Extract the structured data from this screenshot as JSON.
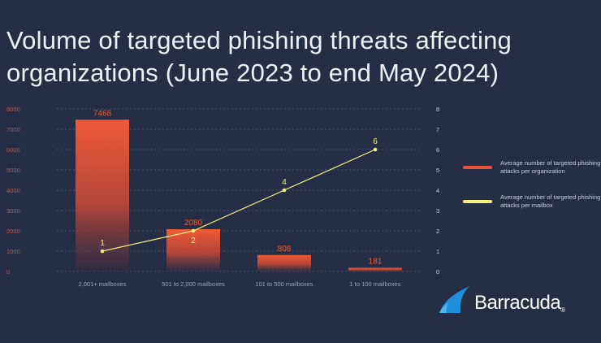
{
  "title": "Volume of targeted phishing threats affecting organizations (June 2023 to end May 2024)",
  "colors": {
    "background": "#252e45",
    "bar_top": "#ef5a36",
    "line": "#f6ed82",
    "axis_text": "#c05a45"
  },
  "legend": [
    {
      "label": "Average number of targeted phishing attacks per organization",
      "color": "#e8543a",
      "icon": "bar-swatch"
    },
    {
      "label": "Average number of targeted phishing attacks per mailbox",
      "color": "#f6ed82",
      "icon": "line-swatch"
    }
  ],
  "logo": {
    "text": "Barracuda",
    "icon": "barracuda-wave-logo"
  },
  "chart_data": {
    "type": "bar",
    "title": "Volume of targeted phishing threats affecting organizations (June 2023 to end May 2024)",
    "categories": [
      "2,001+ mailboxes",
      "501 to 2,000 mailboxes",
      "101 to 500 mailboxes",
      "1 to 100 mailboxes"
    ],
    "series": [
      {
        "name": "Average number of targeted phishing attacks per organization",
        "type": "bar",
        "axis": "left",
        "values": [
          7468,
          2080,
          808,
          181
        ],
        "labels": [
          "7468",
          "2080",
          "808",
          "181"
        ]
      },
      {
        "name": "Average number of targeted phishing attacks per mailbox",
        "type": "line",
        "axis": "right",
        "values": [
          1,
          2,
          4,
          6
        ],
        "labels": [
          "1",
          "2",
          "4",
          "6"
        ]
      }
    ],
    "y_left": {
      "ylim": [
        0,
        8000
      ],
      "ticks": [
        "0",
        "1000",
        "2000",
        "3000",
        "4000",
        "5000",
        "6000",
        "7000",
        "8000"
      ]
    },
    "y_right": {
      "ylim": [
        0,
        8
      ],
      "ticks": [
        "0",
        "1",
        "2",
        "3",
        "4",
        "5",
        "6",
        "7",
        "8"
      ]
    },
    "grid": true,
    "legend_position": "right"
  }
}
